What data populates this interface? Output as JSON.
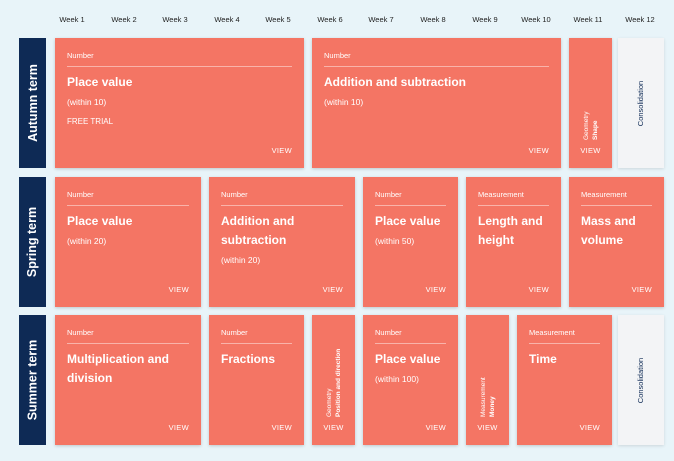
{
  "weeks": [
    "Week 1",
    "Week 2",
    "Week 3",
    "Week 4",
    "Week 5",
    "Week 6",
    "Week 7",
    "Week 8",
    "Week 9",
    "Week 10",
    "Week 11",
    "Week 12"
  ],
  "terms": {
    "autumn": "Autumn term",
    "spring": "Spring term",
    "summer": "Summer term"
  },
  "view_label": "VIEW",
  "consolidation_label": "Consolidation",
  "autumn": {
    "place_value": {
      "category": "Number",
      "title": "Place value",
      "sub": "(within 10)",
      "extra": "FREE TRIAL"
    },
    "add_sub": {
      "category": "Number",
      "title": "Addition and subtraction",
      "sub": "(within 10)"
    },
    "shape": {
      "category": "Geometry",
      "title": "Shape"
    }
  },
  "spring": {
    "place_value": {
      "category": "Number",
      "title": "Place value",
      "sub": "(within 20)"
    },
    "add_sub": {
      "category": "Number",
      "title_line1": "Addition and",
      "title_line2": "subtraction",
      "sub": "(within 20)"
    },
    "place_value_50": {
      "category": "Number",
      "title": "Place value",
      "sub": "(within 50)"
    },
    "length_height": {
      "category": "Measurement",
      "title_line1": "Length and",
      "title_line2": "height"
    },
    "mass_volume": {
      "category": "Measurement",
      "title_line1": "Mass and",
      "title_line2": "volume"
    }
  },
  "summer": {
    "mult_div": {
      "category": "Number",
      "title_line1": "Multiplication and",
      "title_line2": "division"
    },
    "fractions": {
      "category": "Number",
      "title": "Fractions"
    },
    "position": {
      "category": "Geometry",
      "title": "Position and direction"
    },
    "place_value_100": {
      "category": "Number",
      "title": "Place value",
      "sub": "(within 100)"
    },
    "money": {
      "category": "Measurement",
      "title": "Money"
    },
    "time": {
      "category": "Measurement",
      "title": "Time"
    }
  }
}
